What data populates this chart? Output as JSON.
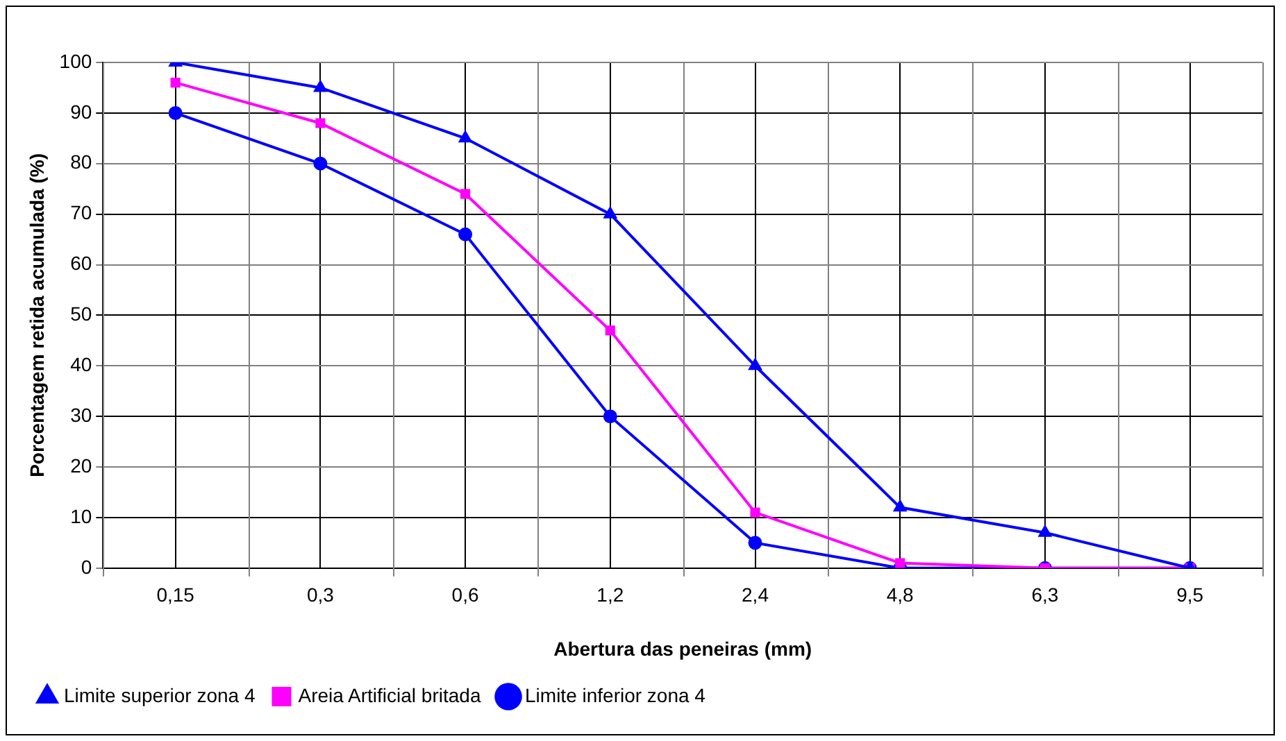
{
  "chart_data": {
    "type": "line",
    "xlabel": "Abertura das peneiras (mm)",
    "ylabel": "Porcentagem retida acumulada (%)",
    "categories": [
      "0,15",
      "0,3",
      "0,6",
      "1,2",
      "2,4",
      "4,8",
      "6,3",
      "9,5"
    ],
    "ylim": [
      0,
      100
    ],
    "yticks": [
      0,
      10,
      20,
      30,
      40,
      50,
      60,
      70,
      80,
      90,
      100
    ],
    "grid": true,
    "legend": "bottom",
    "series": [
      {
        "name": "Limite inferior zona 4",
        "color": "#0000ff",
        "marker": "circle",
        "values": [
          90,
          80,
          66,
          30,
          5,
          0,
          0,
          0
        ]
      },
      {
        "name": "Areia Artificial britada",
        "color": "#ff00ff",
        "marker": "square",
        "values": [
          96,
          88,
          74,
          47,
          11,
          1,
          0,
          0
        ]
      },
      {
        "name": "Limite superior zona 4",
        "color": "#0000ff",
        "marker": "triangle",
        "values": [
          100,
          95,
          85,
          70,
          40,
          12,
          7,
          0
        ]
      }
    ]
  }
}
